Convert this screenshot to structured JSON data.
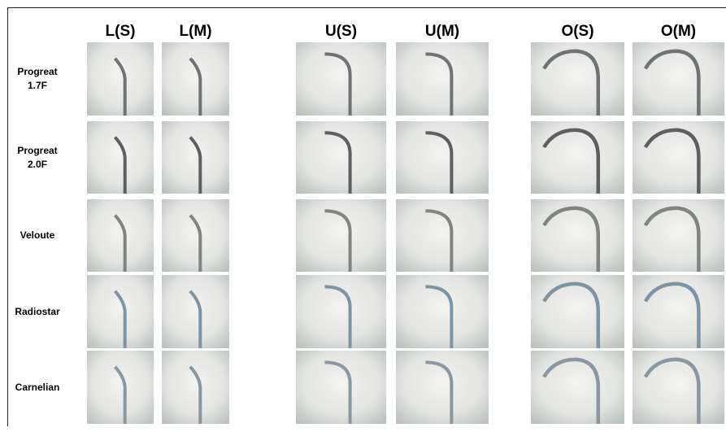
{
  "columns": [
    "L(S)",
    "L(M)",
    "U(S)",
    "U(M)",
    "O(S)",
    "O(M)"
  ],
  "rows": [
    "Progreat 1.7F",
    "Progreat 2.0F",
    "Veloute",
    "Radiostar",
    "Carnelian"
  ]
}
